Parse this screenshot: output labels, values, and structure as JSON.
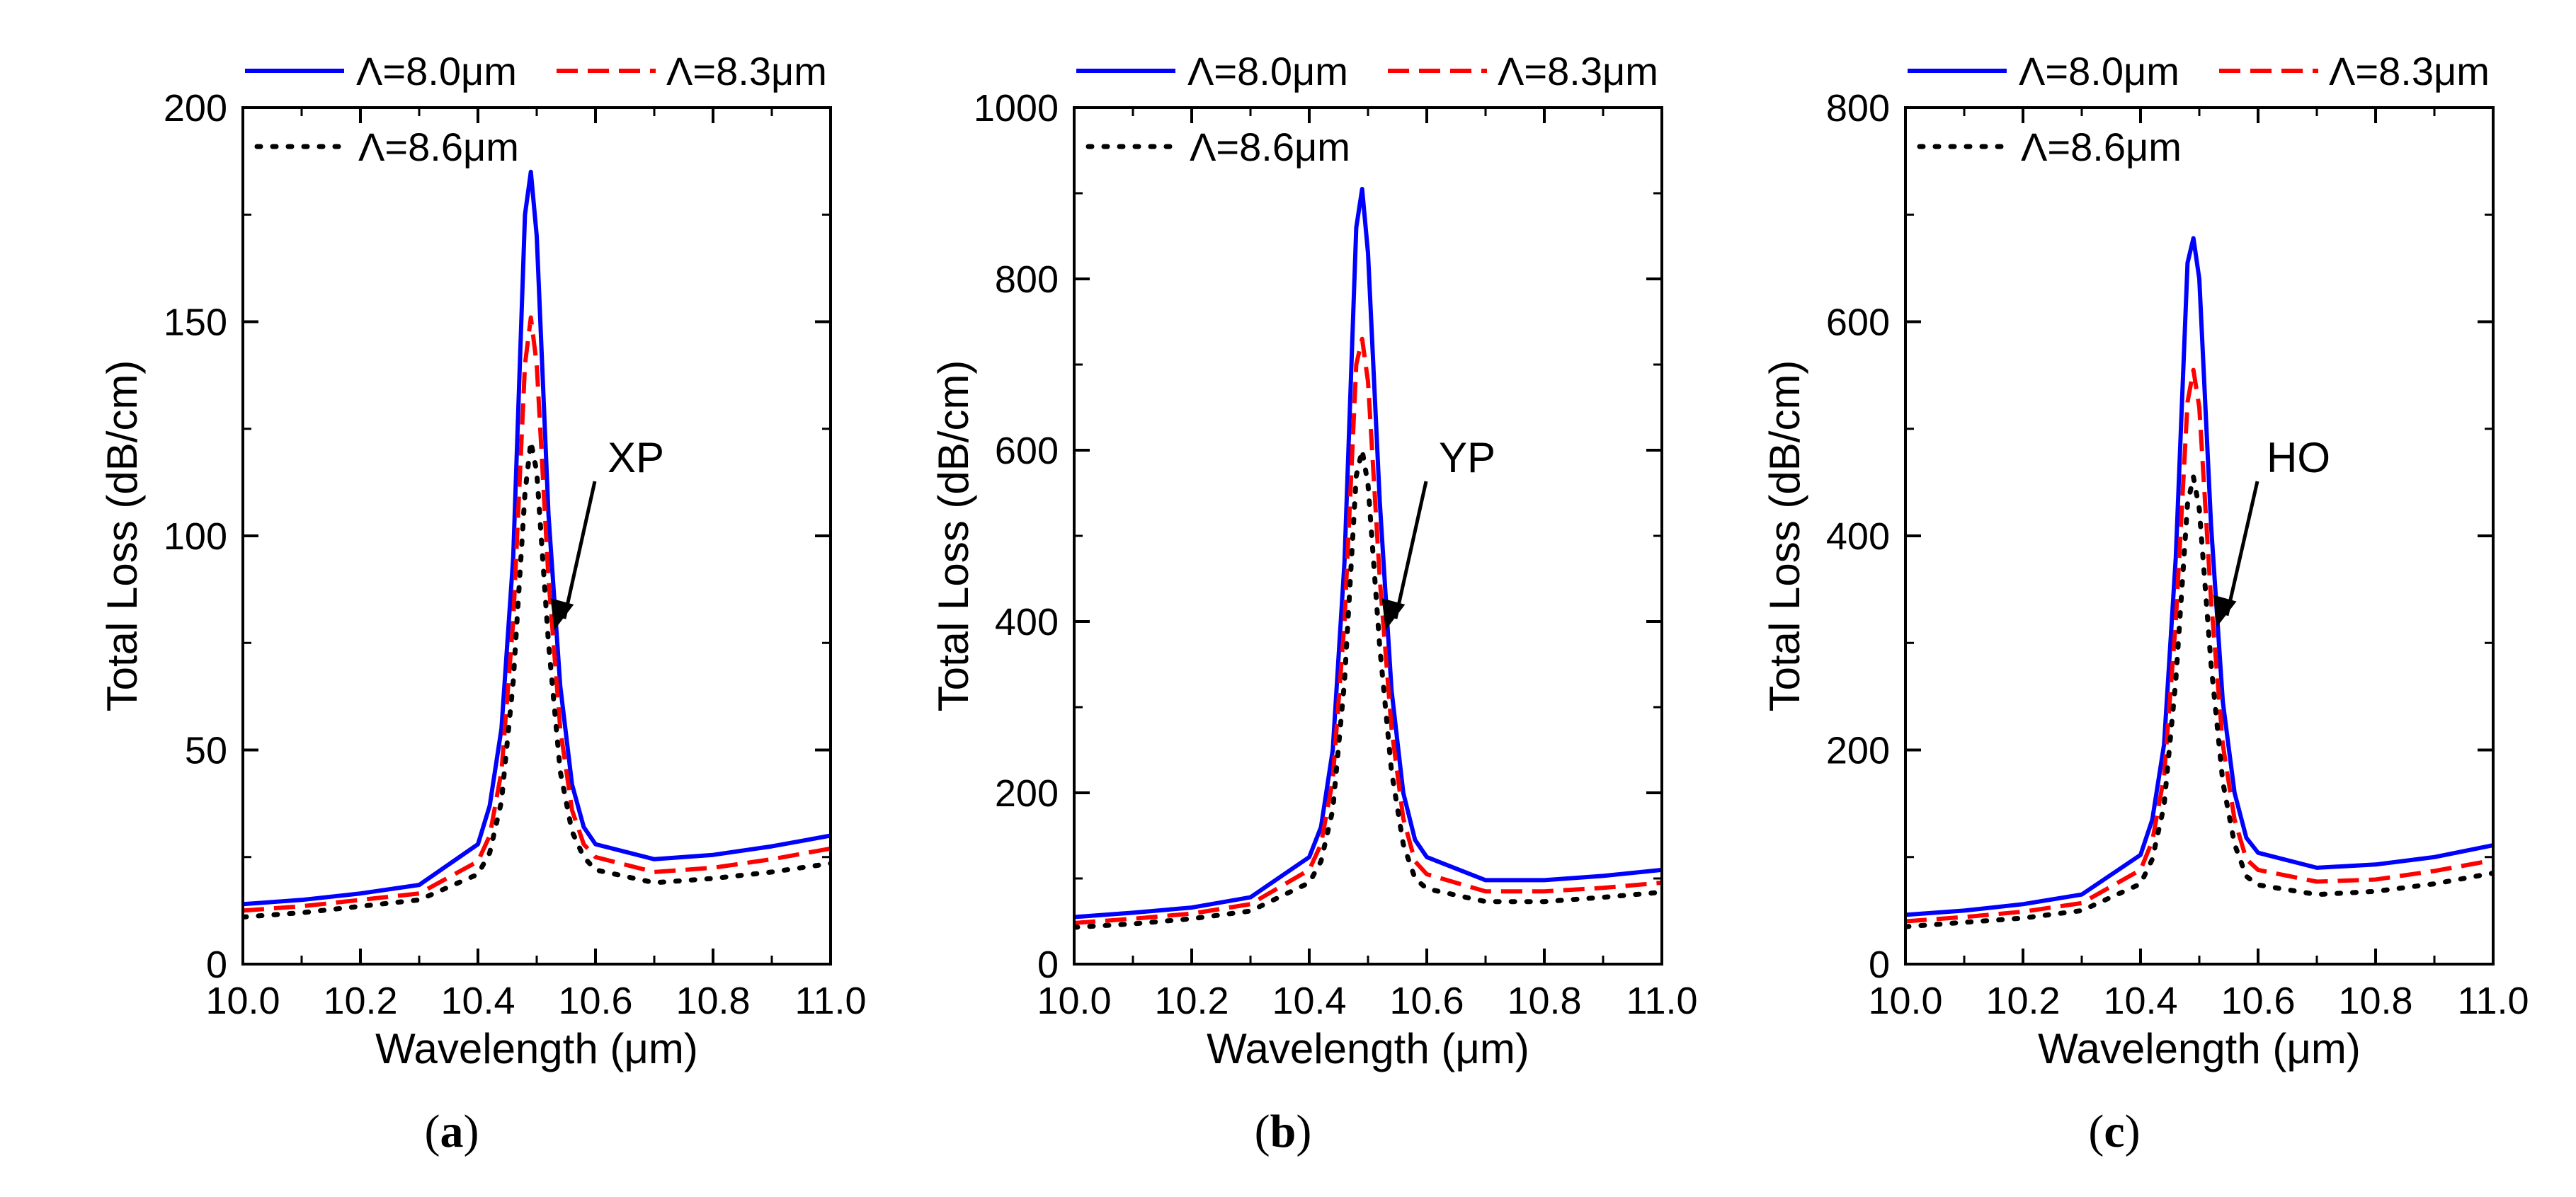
{
  "chart_data": [
    {
      "type": "line",
      "panel_caption": "a",
      "xlabel": "Wavelength (μm)",
      "ylabel": "Total Loss (dB/cm)",
      "xlim": [
        10.0,
        11.0
      ],
      "ylim": [
        0,
        200
      ],
      "xticks": [
        10.0,
        10.2,
        10.4,
        10.6,
        10.8,
        11.0
      ],
      "xtick_labels": [
        "10.0",
        "10.2",
        "10.4",
        "10.6",
        "10.8",
        "11.0"
      ],
      "yticks": [
        0,
        50,
        100,
        150,
        200
      ],
      "ytick_labels": [
        "0",
        "50",
        "100",
        "150",
        "200"
      ],
      "annotation": {
        "text": "XP",
        "point_x": 10.53,
        "point_y": 78
      },
      "x": [
        10.0,
        10.1,
        10.2,
        10.3,
        10.4,
        10.42,
        10.44,
        10.46,
        10.48,
        10.49,
        10.5,
        10.52,
        10.54,
        10.56,
        10.58,
        10.6,
        10.7,
        10.8,
        10.9,
        11.0
      ],
      "series": [
        {
          "name": "Λ=8.0μm",
          "color": "#0000ff",
          "style": "solid",
          "values": [
            14,
            15,
            16.5,
            18.5,
            28,
            37,
            55,
            95,
            175,
            185,
            170,
            105,
            65,
            42,
            32,
            28,
            24.5,
            25.5,
            27.5,
            30
          ]
        },
        {
          "name": "Λ=8.3μm",
          "color": "#ff0000",
          "style": "dashed",
          "values": [
            12.5,
            13.5,
            15,
            16.5,
            24,
            30,
            45,
            80,
            140,
            151,
            140,
            90,
            55,
            36,
            28,
            25,
            21.5,
            22.5,
            24.5,
            27
          ]
        },
        {
          "name": "Λ=8.6μm",
          "color": "#000000",
          "style": "dotted",
          "values": [
            11,
            12,
            13.5,
            15,
            21,
            26,
            38,
            66,
            110,
            122,
            115,
            75,
            45,
            31,
            25,
            22,
            19,
            20,
            21.5,
            23.5
          ]
        }
      ]
    },
    {
      "type": "line",
      "panel_caption": "b",
      "xlabel": "Wavelength (μm)",
      "ylabel": "Total Loss (dB/cm)",
      "xlim": [
        10.0,
        11.0
      ],
      "ylim": [
        0,
        1000
      ],
      "xticks": [
        10.0,
        10.2,
        10.4,
        10.6,
        10.8,
        11.0
      ],
      "xtick_labels": [
        "10.0",
        "10.2",
        "10.4",
        "10.6",
        "10.8",
        "11.0"
      ],
      "yticks": [
        0,
        200,
        400,
        600,
        800,
        1000
      ],
      "ytick_labels": [
        "0",
        "200",
        "400",
        "600",
        "800",
        "1000"
      ],
      "annotation": {
        "text": "YP",
        "point_x": 10.53,
        "point_y": 390
      },
      "x": [
        10.0,
        10.1,
        10.2,
        10.3,
        10.4,
        10.42,
        10.44,
        10.46,
        10.48,
        10.49,
        10.5,
        10.52,
        10.54,
        10.56,
        10.58,
        10.6,
        10.7,
        10.8,
        10.9,
        11.0
      ],
      "series": [
        {
          "name": "Λ=8.0μm",
          "color": "#0000ff",
          "style": "solid",
          "values": [
            55,
            60,
            66,
            78,
            125,
            160,
            250,
            470,
            860,
            905,
            830,
            540,
            320,
            200,
            145,
            125,
            98,
            98,
            103,
            110
          ]
        },
        {
          "name": "Λ=8.3μm",
          "color": "#ff0000",
          "style": "dashed",
          "values": [
            48,
            53,
            59,
            70,
            110,
            140,
            215,
            400,
            700,
            730,
            680,
            450,
            275,
            170,
            120,
            105,
            85,
            85,
            89,
            95
          ]
        },
        {
          "name": "Λ=8.6μm",
          "color": "#000000",
          "style": "dotted",
          "values": [
            43,
            47,
            53,
            62,
            95,
            120,
            180,
            330,
            570,
            600,
            560,
            370,
            225,
            140,
            100,
            88,
            73,
            73,
            78,
            84
          ]
        }
      ]
    },
    {
      "type": "line",
      "panel_caption": "c",
      "xlabel": "Wavelength (μm)",
      "ylabel": "Total Loss (dB/cm)",
      "xlim": [
        10.0,
        11.0
      ],
      "ylim": [
        0,
        800
      ],
      "xticks": [
        10.0,
        10.2,
        10.4,
        10.6,
        10.8,
        11.0
      ],
      "xtick_labels": [
        "10.0",
        "10.2",
        "10.4",
        "10.6",
        "10.8",
        "11.0"
      ],
      "yticks": [
        0,
        200,
        400,
        600,
        800
      ],
      "ytick_labels": [
        "0",
        "200",
        "400",
        "600",
        "800"
      ],
      "annotation": {
        "text": "HO",
        "point_x": 10.53,
        "point_y": 315
      },
      "x": [
        10.0,
        10.1,
        10.2,
        10.3,
        10.4,
        10.42,
        10.44,
        10.46,
        10.48,
        10.49,
        10.5,
        10.52,
        10.54,
        10.56,
        10.58,
        10.6,
        10.7,
        10.8,
        10.9,
        11.0
      ],
      "series": [
        {
          "name": "Λ=8.0μm",
          "color": "#0000ff",
          "style": "solid",
          "values": [
            46,
            50,
            56,
            65,
            102,
            135,
            205,
            380,
            655,
            678,
            640,
            410,
            245,
            160,
            118,
            104,
            90,
            93,
            100,
            111
          ]
        },
        {
          "name": "Λ=8.3μm",
          "color": "#ff0000",
          "style": "dashed",
          "values": [
            40,
            44,
            49,
            57,
            88,
            115,
            175,
            320,
            525,
            555,
            520,
            340,
            205,
            135,
            98,
            88,
            77,
            79,
            87,
            97
          ]
        },
        {
          "name": "Λ=8.6μm",
          "color": "#000000",
          "style": "dotted",
          "values": [
            35,
            39,
            43,
            50,
            75,
            98,
            148,
            265,
            430,
            455,
            425,
            280,
            170,
            112,
            82,
            74,
            65,
            68,
            75,
            85
          ]
        }
      ]
    }
  ]
}
